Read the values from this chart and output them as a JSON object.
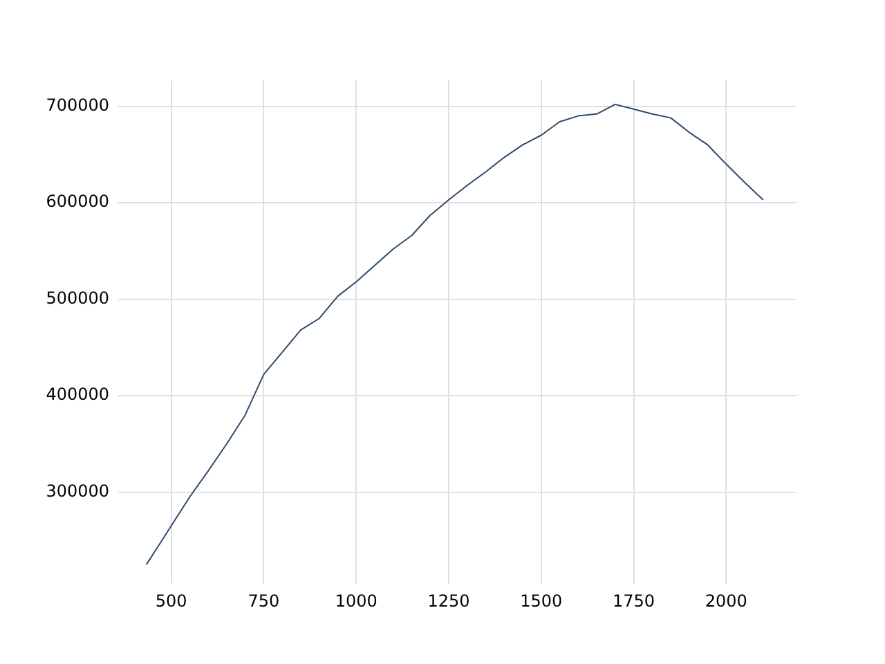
{
  "chart_data": {
    "type": "line",
    "x": [
      433,
      470,
      500,
      550,
      600,
      650,
      700,
      750,
      800,
      850,
      900,
      950,
      1000,
      1050,
      1100,
      1150,
      1200,
      1250,
      1300,
      1350,
      1400,
      1450,
      1500,
      1550,
      1600,
      1650,
      1700,
      1750,
      1800,
      1850,
      1900,
      1950,
      2000,
      2050,
      2100
    ],
    "series": [
      {
        "color": "#2e4a6b",
        "values": [
          225000,
          247000,
          265000,
          295000,
          322000,
          350000,
          380000,
          422000,
          445000,
          468000,
          480000,
          503000,
          518000,
          535000,
          552000,
          566000,
          587000,
          603000,
          618000,
          632000,
          647000,
          660000,
          670000,
          684000,
          690000,
          692000,
          702000,
          697000,
          692000,
          688000,
          673000,
          660000,
          640000,
          621000,
          603000
        ]
      }
    ],
    "xlim": [
      355,
      2190
    ],
    "ylim": [
      205000,
      727000
    ],
    "xticks": [
      500,
      750,
      1000,
      1250,
      1500,
      1750,
      2000
    ],
    "yticks": [
      300000,
      400000,
      500000,
      600000,
      700000
    ],
    "grid": true,
    "marker": "none",
    "line_style": "solid",
    "legend": false
  }
}
